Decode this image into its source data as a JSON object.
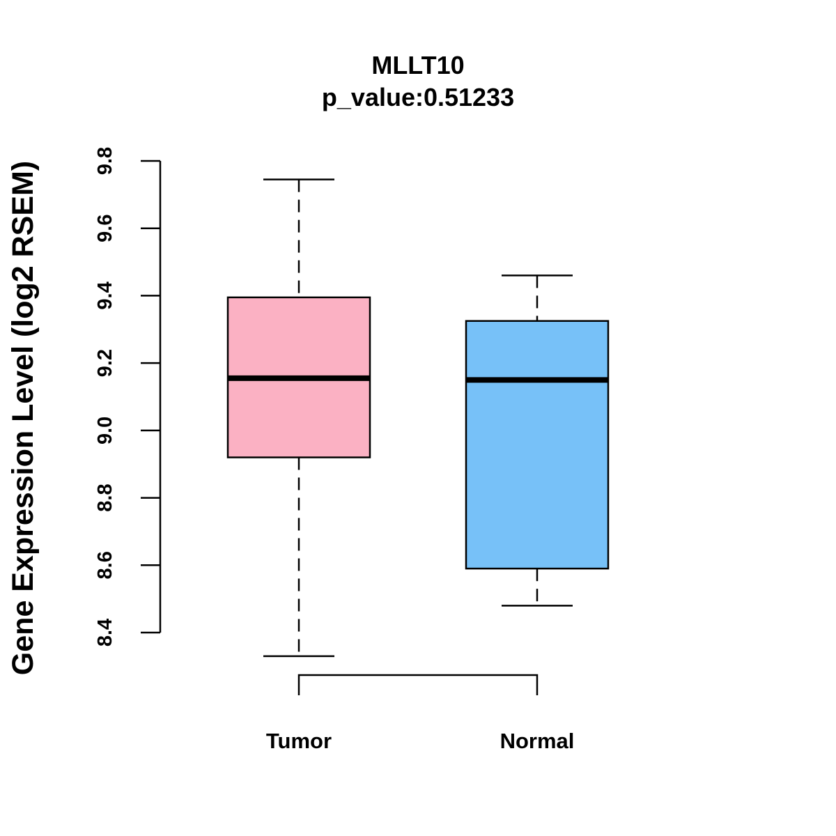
{
  "chart_data": {
    "type": "boxplot",
    "title": "MLLT10",
    "subtitle": "p_value:0.51233",
    "xlabel": "",
    "ylabel": "Gene Expression Level (log2 RSEM)",
    "ylim": [
      8.33,
      9.8
    ],
    "yticks": [
      "8.4",
      "8.6",
      "8.8",
      "9.0",
      "9.2",
      "9.4",
      "9.6",
      "9.8"
    ],
    "grid": false,
    "categories": [
      "Tumor",
      "Normal"
    ],
    "series": [
      {
        "category": "Tumor",
        "min": 8.33,
        "q1": 8.92,
        "median": 9.155,
        "q3": 9.395,
        "max": 9.745,
        "color": "#FBB1C3"
      },
      {
        "category": "Normal",
        "min": 8.48,
        "q1": 8.59,
        "median": 9.15,
        "q3": 9.325,
        "max": 9.46,
        "color": "#77C1F8"
      }
    ],
    "comparison_bracket": [
      "Tumor",
      "Normal"
    ]
  }
}
